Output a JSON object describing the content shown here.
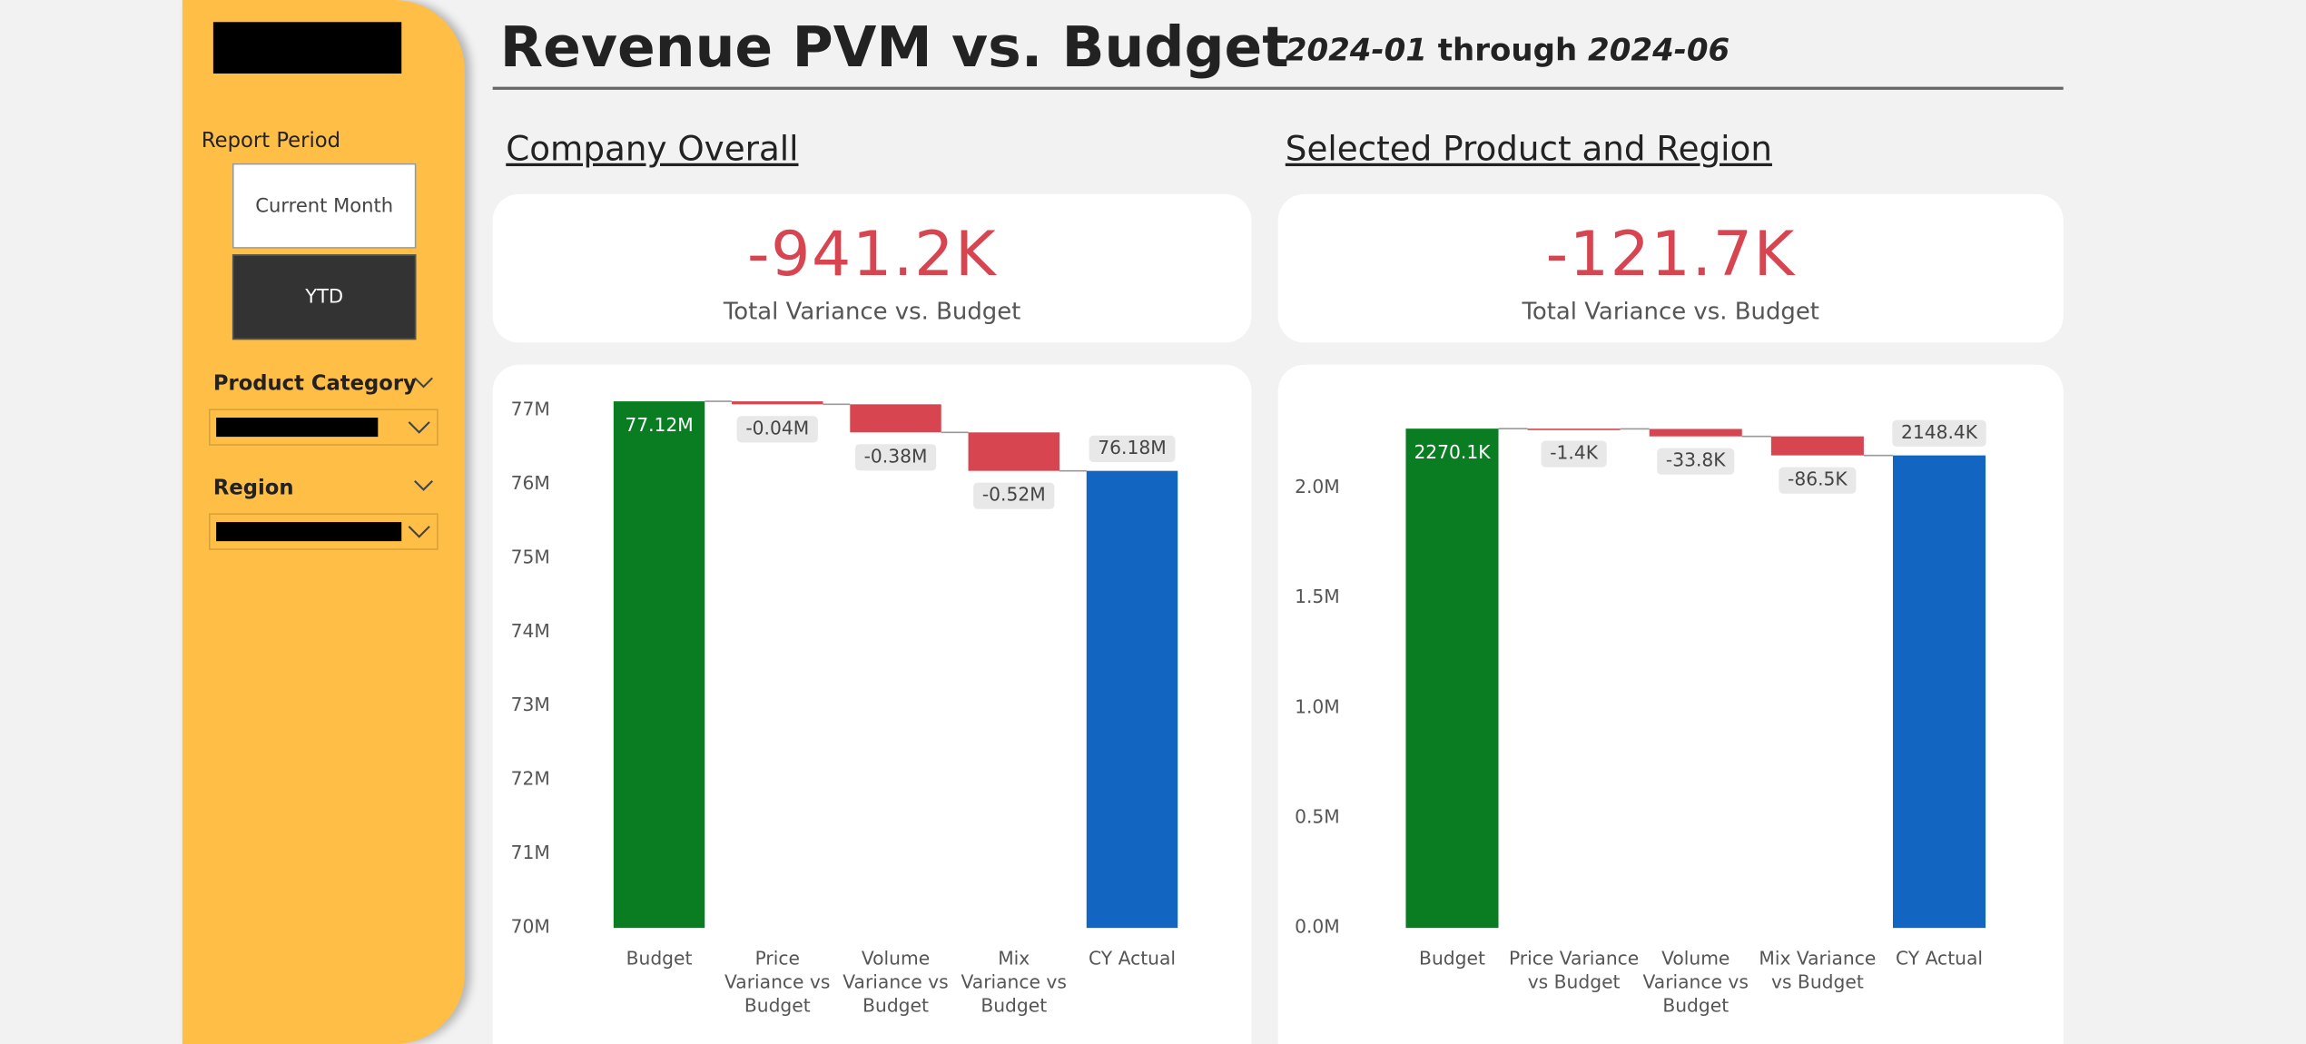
{
  "sidebar": {
    "report_period_label": "Report Period",
    "buttons": [
      "Current Month",
      "YTD"
    ],
    "filters": [
      "Product Category",
      "Region"
    ]
  },
  "header": {
    "title": "Revenue PVM vs. Budget",
    "period_start": "2024-01",
    "period_connector": "through",
    "period_end": "2024-06"
  },
  "sections": [
    {
      "heading": "Company Overall",
      "kpi_value": "-941.2K",
      "kpi_label": "Total Variance vs. Budget"
    },
    {
      "heading": "Selected Product and Region",
      "kpi_value": "-121.7K",
      "kpi_label": "Total Variance vs. Budget"
    }
  ],
  "chart_data": [
    {
      "type": "waterfall",
      "categories": [
        "Budget",
        "Price Variance vs Budget",
        "Volume Variance vs Budget",
        "Mix Variance vs Budget",
        "CY Actual"
      ],
      "values": [
        77.12,
        -0.04,
        -0.38,
        -0.52,
        76.18
      ],
      "value_labels": [
        "77.12M",
        "-0.04M",
        "-0.38M",
        "-0.52M",
        "76.18M"
      ],
      "measures": [
        "absolute",
        "relative",
        "relative",
        "relative",
        "total"
      ],
      "colors": [
        "#0a7d23",
        "#d64550",
        "#d64550",
        "#d64550",
        "#1266c2"
      ],
      "ylim": [
        70,
        77.15
      ],
      "yticks": [
        {
          "value": 70,
          "label": "70M"
        },
        {
          "value": 71,
          "label": "71M"
        },
        {
          "value": 72,
          "label": "72M"
        },
        {
          "value": 73,
          "label": "73M"
        },
        {
          "value": 74,
          "label": "74M"
        },
        {
          "value": 75,
          "label": "75M"
        },
        {
          "value": 76,
          "label": "76M"
        },
        {
          "value": 77,
          "label": "77M"
        }
      ]
    },
    {
      "type": "waterfall",
      "categories": [
        "Budget",
        "Price Variance vs Budget",
        "Volume Variance vs Budget",
        "Mix Variance vs Budget",
        "CY Actual"
      ],
      "values": [
        2.2701,
        -0.0014,
        -0.0338,
        -0.0865,
        2.1484
      ],
      "value_labels": [
        "2270.1K",
        "-1.4K",
        "-33.8K",
        "-86.5K",
        "2148.4K"
      ],
      "measures": [
        "absolute",
        "relative",
        "relative",
        "relative",
        "total"
      ],
      "colors": [
        "#0a7d23",
        "#d64550",
        "#d64550",
        "#d64550",
        "#1266c2"
      ],
      "ylim": [
        0,
        2.3
      ],
      "yticks": [
        {
          "value": 0,
          "label": "0.0M"
        },
        {
          "value": 0.5,
          "label": "0.5M"
        },
        {
          "value": 1,
          "label": "1.0M"
        },
        {
          "value": 1.5,
          "label": "1.5M"
        },
        {
          "value": 2,
          "label": "2.0M"
        }
      ]
    }
  ]
}
